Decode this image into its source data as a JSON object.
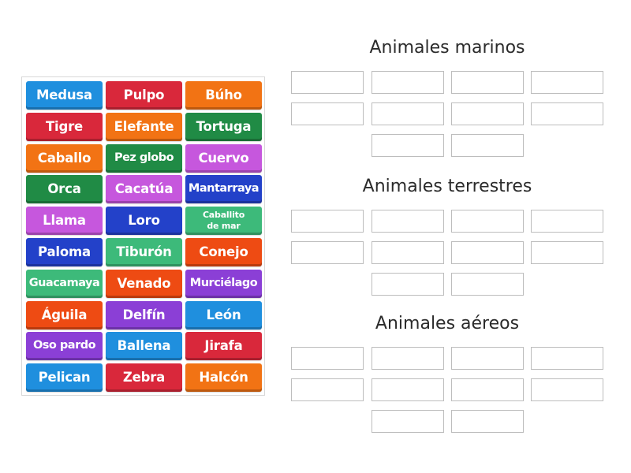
{
  "cards": [
    {
      "label": "Medusa",
      "color": "#1f8fde"
    },
    {
      "label": "Pulpo",
      "color": "#d9283b"
    },
    {
      "label": "Búho",
      "color": "#f27314"
    },
    {
      "label": "Tigre",
      "color": "#d9283b"
    },
    {
      "label": "Elefante",
      "color": "#f27314"
    },
    {
      "label": "Tortuga",
      "color": "#208b45"
    },
    {
      "label": "Caballo",
      "color": "#f27314"
    },
    {
      "label": "Pez globo",
      "color": "#208b45"
    },
    {
      "label": "Cuervo",
      "color": "#c657dd"
    },
    {
      "label": "Orca",
      "color": "#208b45"
    },
    {
      "label": "Cacatúa",
      "color": "#c657dd"
    },
    {
      "label": "Mantarraya",
      "color": "#2341c9"
    },
    {
      "label": "Llama",
      "color": "#c657dd"
    },
    {
      "label": "Loro",
      "color": "#2341c9"
    },
    {
      "label": "Caballito de mar",
      "color": "#3dba7a"
    },
    {
      "label": "Paloma",
      "color": "#2341c9"
    },
    {
      "label": "Tiburón",
      "color": "#3dba7a"
    },
    {
      "label": "Conejo",
      "color": "#ee4b13"
    },
    {
      "label": "Guacamaya",
      "color": "#3dba7a"
    },
    {
      "label": "Venado",
      "color": "#ee4b13"
    },
    {
      "label": "Murciélago",
      "color": "#8b3fd6"
    },
    {
      "label": "Águila",
      "color": "#ee4b13"
    },
    {
      "label": "Delfín",
      "color": "#8b3fd6"
    },
    {
      "label": "León",
      "color": "#1f8fde"
    },
    {
      "label": "Oso pardo",
      "color": "#8b3fd6"
    },
    {
      "label": "Ballena",
      "color": "#1f8fde"
    },
    {
      "label": "Jirafa",
      "color": "#d9283b"
    },
    {
      "label": "Pelican",
      "color": "#1f8fde"
    },
    {
      "label": "Zebra",
      "color": "#d9283b"
    },
    {
      "label": "Halcón",
      "color": "#f27314"
    }
  ],
  "groups": [
    {
      "title": "Animales marinos"
    },
    {
      "title": "Animales terrestres"
    },
    {
      "title": "Animales aéreos"
    }
  ]
}
